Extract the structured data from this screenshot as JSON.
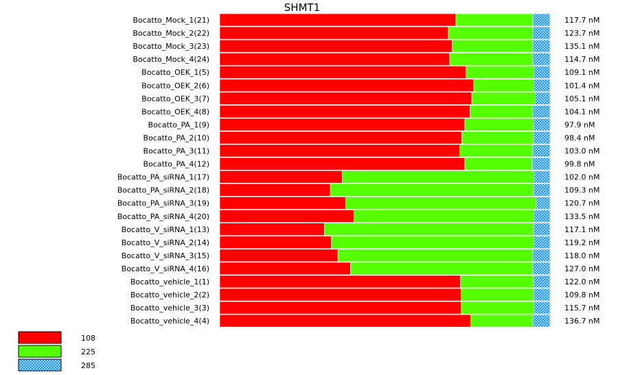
{
  "chart_data": {
    "type": "bar",
    "orientation": "horizontal",
    "stacked": true,
    "normalized": true,
    "title": "SHMT1",
    "categories": [
      "Bocatto_Mock_1(21)",
      "Bocatto_Mock_2(22)",
      "Bocatto_Mock_3(23)",
      "Bocatto_Mock_4(24)",
      "Bocatto_OEK_1(5)",
      "Bocatto_OEK_2(6)",
      "Bocatto_OEK_3(7)",
      "Bocatto_OEK_4(8)",
      "Bocatto_PA_1(9)",
      "Bocatto_PA_2(10)",
      "Bocatto_PA_3(11)",
      "Bocatto_PA_4(12)",
      "Bocatto_PA_siRNA_1(17)",
      "Bocatto_PA_siRNA_2(18)",
      "Bocatto_PA_siRNA_3(19)",
      "Bocatto_PA_siRNA_4(20)",
      "Bocatto_V_siRNA_1(13)",
      "Bocatto_V_siRNA_2(14)",
      "Bocatto_V_siRNA_3(15)",
      "Bocatto_V_siRNA_4(16)",
      "Bocatto_vehicle_1(1)",
      "Bocatto_vehicle_2(2)",
      "Bocatto_vehicle_3(3)",
      "Bocatto_vehicle_4(4)"
    ],
    "totals": [
      "117.7 nM",
      "123.7 nM",
      "135.1 nM",
      "114.7 nM",
      "109.1 nM",
      "101.4 nM",
      "105.1 nM",
      "104.1 nM",
      "97.9 nM",
      "98.4 nM",
      "103.0 nM",
      "99.8 nM",
      "102.0 nM",
      "109.3 nM",
      "120.7 nM",
      "133.5 nM",
      "117.1 nM",
      "119.2 nM",
      "118.0 nM",
      "127.0 nM",
      "122.0 nM",
      "109.8 nM",
      "115.7 nM",
      "136.7 nM"
    ],
    "series": [
      {
        "name": "108",
        "color": "#ff0000",
        "values": [
          71.5,
          69.2,
          70.4,
          69.6,
          74.6,
          76.9,
          76.3,
          75.8,
          74.2,
          73.3,
          72.7,
          74.2,
          37.1,
          33.5,
          38.1,
          40.6,
          31.7,
          33.8,
          35.8,
          39.6,
          72.9,
          73.1,
          73.1,
          76.0
        ]
      },
      {
        "name": "225",
        "color": "#55ff00",
        "values": [
          23.3,
          25.6,
          24.4,
          25.2,
          20.6,
          18.3,
          19.2,
          19.0,
          20.8,
          21.7,
          22.1,
          20.4,
          58.1,
          61.5,
          57.7,
          54.6,
          63.3,
          61.3,
          59.0,
          55.2,
          22.1,
          21.9,
          22.1,
          18.8
        ]
      },
      {
        "name": "285",
        "color": "#1e90ff",
        "values": [
          5.2,
          5.2,
          5.2,
          5.2,
          4.8,
          4.8,
          4.5,
          5.2,
          5.0,
          5.0,
          5.2,
          5.4,
          4.8,
          5.0,
          4.2,
          4.8,
          5.0,
          4.9,
          5.2,
          5.2,
          5.0,
          5.0,
          4.8,
          5.2
        ]
      }
    ],
    "legend_position": "bottom-left",
    "grid": false
  }
}
